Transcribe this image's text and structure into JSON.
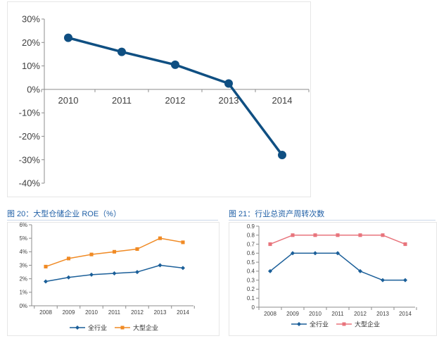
{
  "captions": {
    "fig20": "图 20：大型仓储企业 ROE（%）",
    "fig21": "图 21：行业总资产周转次数"
  },
  "chart_data": [
    {
      "type": "line",
      "title": "",
      "x": [
        "2010",
        "2011",
        "2012",
        "2013",
        "2014"
      ],
      "series": [
        {
          "values": [
            22,
            16,
            10.5,
            2.5,
            -28
          ]
        }
      ],
      "ylim": [
        -40,
        30
      ],
      "yticks": [
        "30%",
        "20%",
        "10%",
        "0%",
        "-10%",
        "-20%",
        "-30%",
        "-40%"
      ],
      "yticks_values": [
        30,
        20,
        10,
        0,
        -10,
        -20,
        -30,
        -40
      ],
      "grid": false,
      "color": "#0f4f82"
    },
    {
      "type": "line",
      "title": "",
      "x": [
        "2008",
        "2009",
        "2010",
        "2011",
        "2012",
        "2013",
        "2014"
      ],
      "series": [
        {
          "name": "全行业",
          "values": [
            1.8,
            2.1,
            2.3,
            2.4,
            2.5,
            3.0,
            2.8
          ],
          "color": "#1b5f99",
          "marker": "diamond"
        },
        {
          "name": "大型企业",
          "values": [
            2.9,
            3.5,
            3.8,
            4.0,
            4.2,
            5.0,
            4.7
          ],
          "color": "#f08a24",
          "marker": "square"
        }
      ],
      "ylim": [
        0,
        6
      ],
      "yticks": [
        "6%",
        "5%",
        "4%",
        "3%",
        "2%",
        "1%",
        "0%"
      ],
      "yticks_values": [
        6,
        5,
        4,
        3,
        2,
        1,
        0
      ],
      "grid": false,
      "legend": "bottom"
    },
    {
      "type": "line",
      "title": "",
      "x": [
        "2008",
        "2009",
        "2010",
        "2011",
        "2012",
        "2013",
        "2014"
      ],
      "series": [
        {
          "name": "全行业",
          "values": [
            0.4,
            0.6,
            0.6,
            0.6,
            0.4,
            0.3,
            0.3
          ],
          "color": "#1b5f99",
          "marker": "diamond"
        },
        {
          "name": "大型企业",
          "values": [
            0.7,
            0.8,
            0.8,
            0.8,
            0.8,
            0.8,
            0.7
          ],
          "color": "#e8747c",
          "marker": "square"
        }
      ],
      "ylim": [
        0,
        0.9
      ],
      "yticks": [
        "0.9",
        "0.8",
        "0.7",
        "0.6",
        "0.5",
        "0.4",
        "0.3",
        "0.2",
        "0.1",
        "0"
      ],
      "yticks_values": [
        0.9,
        0.8,
        0.7,
        0.6,
        0.5,
        0.4,
        0.3,
        0.2,
        0.1,
        0
      ],
      "grid": false,
      "legend": "bottom"
    }
  ]
}
